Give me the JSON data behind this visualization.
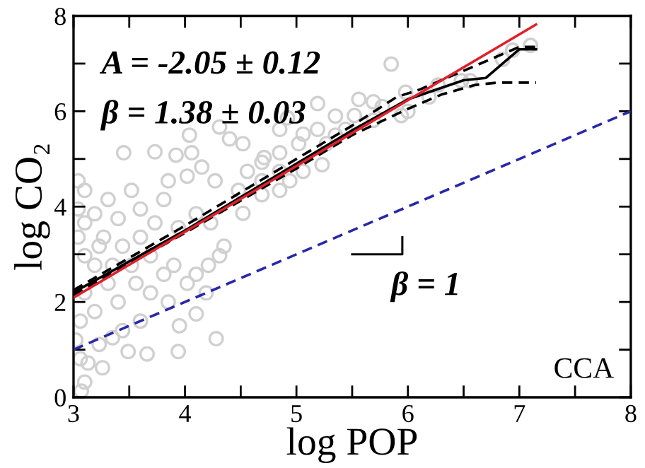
{
  "chart_data": {
    "type": "scatter",
    "xlabel": "log POP",
    "ylabel": "log CO₂",
    "xlim": [
      3,
      8
    ],
    "ylim": [
      0,
      8
    ],
    "xticks": [
      3,
      {
        "value": 3.5,
        "label": null
      },
      4,
      {
        "value": 4.5,
        "label": null
      },
      5,
      {
        "value": 5.5,
        "label": null
      },
      6,
      {
        "value": 6.5,
        "label": null
      },
      7,
      {
        "value": 7.5,
        "label": null
      },
      8
    ],
    "yticks": [
      0,
      {
        "value": 1,
        "label": null
      },
      2,
      {
        "value": 3,
        "label": null
      },
      4,
      {
        "value": 5,
        "label": null
      },
      6,
      {
        "value": 7,
        "label": null
      },
      8
    ],
    "grid": false,
    "legend": false,
    "annotations": [
      "A = -2.05 ± 0.12",
      "β = 1.38 ± 0.03",
      "β = 1",
      "CCA"
    ],
    "series": [
      {
        "marker": "circle",
        "color": "#d0d0d0",
        "x": [
          4.28,
          3.94,
          3.66,
          3.49,
          3.95,
          4.1,
          3.26,
          3.1,
          3.07,
          3.13,
          3.35,
          3.45,
          3.73,
          3.92,
          4.06,
          4.04,
          4.31,
          4.4,
          4.52,
          4.71,
          4.85,
          4.92,
          5.19,
          5.19,
          5.35,
          5.56,
          5.69,
          5.85,
          6.0,
          6.48,
          6.56,
          6.94,
          7.1,
          6.85,
          6.19,
          6.27,
          5.98,
          5.35,
          5.23,
          5.06,
          4.85,
          4.69,
          4.52,
          4.35,
          4.31,
          4.21,
          4.1,
          4.19,
          4.02,
          3.85,
          3.6,
          3.44,
          3.23,
          3.06,
          3.02,
          3.04,
          3.1,
          3.31,
          3.04,
          3.19,
          3.4,
          3.52,
          3.6,
          3.81,
          3.85,
          4.02,
          4.15,
          4.27,
          4.48,
          4.56,
          4.69,
          3.73,
          3.94,
          4.1,
          4.23,
          3.44,
          3.69,
          3.9,
          3.19,
          3.31,
          3.1,
          3.06,
          3.19,
          3.4,
          3.56,
          3.69,
          3.81,
          3.52,
          3.6,
          3.27,
          3.35,
          3.1,
          4.85,
          5.02,
          5.06,
          4.69,
          4.85,
          4.94,
          5.27,
          5.44,
          5.52,
          5.69,
          5.77,
          5.94,
          3.1,
          3.23,
          3.04
        ],
        "values": [
          1.23,
          0.96,
          0.91,
          0.96,
          1.5,
          1.75,
          0.62,
          0.32,
          0.13,
          0.72,
          1.25,
          5.13,
          5.15,
          5.08,
          5.13,
          5.5,
          5.67,
          5.42,
          5.32,
          5.03,
          5.62,
          5.86,
          6.16,
          5.62,
          5.9,
          6.25,
          6.2,
          6.99,
          6.0,
          6.64,
          6.64,
          7.28,
          7.38,
          7.09,
          6.3,
          6.55,
          6.4,
          5.5,
          4.88,
          4.74,
          4.34,
          4.25,
          3.86,
          3.17,
          2.97,
          2.77,
          2.58,
          2.19,
          2.39,
          2.0,
          1.6,
          1.4,
          1.11,
          0.81,
          1.2,
          4.54,
          4.34,
          4.15,
          3.36,
          3.85,
          3.75,
          4.34,
          3.95,
          4.15,
          4.54,
          4.64,
          4.83,
          4.54,
          4.34,
          4.74,
          4.93,
          3.66,
          3.56,
          3.85,
          3.66,
          3.17,
          2.97,
          2.77,
          2.77,
          2.39,
          2.19,
          1.6,
          1.8,
          2.0,
          2.39,
          2.19,
          2.58,
          2.77,
          3.36,
          3.36,
          2.77,
          3.66,
          5.13,
          5.32,
          5.52,
          4.54,
          4.74,
          4.54,
          5.32,
          5.62,
          5.91,
          5.81,
          6.1,
          5.91,
          2.97,
          3.17,
          3.95
        ]
      },
      {
        "type": "line",
        "marker": "none",
        "line_style": "dashed",
        "color": "#000000",
        "x": [
          3.0,
          4.0,
          5.0,
          5.5,
          5.9,
          6.1,
          6.5,
          6.9,
          7.0,
          7.15
        ],
        "values": [
          2.25,
          3.6,
          5.0,
          5.7,
          6.3,
          6.45,
          6.85,
          7.25,
          7.35,
          7.35
        ]
      },
      {
        "type": "line",
        "marker": "none",
        "line_style": "dashed",
        "color": "#000000",
        "x": [
          3.0,
          4.0,
          5.0,
          5.5,
          6.0,
          6.3,
          6.6,
          6.8,
          7.15
        ],
        "values": [
          2.15,
          3.45,
          4.8,
          5.5,
          6.05,
          6.35,
          6.55,
          6.6,
          6.6
        ]
      },
      {
        "type": "line",
        "marker": "none",
        "line_style": "solid",
        "color": "#000000",
        "x": [
          3.0,
          3.5,
          4.0,
          4.5,
          5.0,
          5.5,
          6.0,
          6.25,
          6.5,
          6.7,
          6.85,
          7.0,
          7.15
        ],
        "values": [
          2.2,
          2.85,
          3.5,
          4.2,
          4.9,
          5.6,
          6.25,
          6.45,
          6.65,
          6.7,
          7.0,
          7.3,
          7.3
        ]
      },
      {
        "type": "line",
        "marker": "none",
        "line_style": "solid",
        "color": "#e0202a",
        "x": [
          3.0,
          7.15
        ],
        "values": [
          2.09,
          7.82
        ]
      },
      {
        "type": "line",
        "marker": "none",
        "line_style": "dashed",
        "color": "#2828a8",
        "x": [
          3.0,
          8.0
        ],
        "values": [
          1.0,
          6.0
        ]
      }
    ]
  }
}
